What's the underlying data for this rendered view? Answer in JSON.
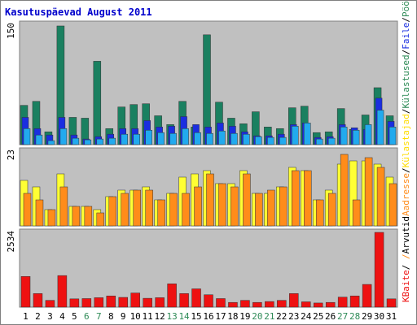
{
  "chart_data": {
    "title": "Kasutuspäevad August 2011",
    "type": "bar",
    "days": [
      "1",
      "2",
      "3",
      "4",
      "5",
      "6",
      "7",
      "8",
      "9",
      "10",
      "11",
      "12",
      "13",
      "14",
      "15",
      "16",
      "17",
      "18",
      "19",
      "20",
      "21",
      "22",
      "23",
      "24",
      "25",
      "26",
      "27",
      "28",
      "29",
      "30",
      "31"
    ],
    "weekend_days": [
      "6",
      "7",
      "13",
      "14",
      "20",
      "21",
      "27",
      "28"
    ],
    "colors": {
      "background": "#c0c0c0",
      "weekday_label": "#000000",
      "weekend_label": "#2e8b57",
      "visits": "#1a8060",
      "pages": "#1a2ee0",
      "hits": "#22aaee",
      "files": "#ffff33",
      "sites": "#ff8c1a",
      "kbytes": "#ee1111"
    },
    "panels": [
      {
        "max_label": "150",
        "ymax": 150,
        "series": [
          {
            "name": "Külastused",
            "values": [
              49,
              54,
              16,
              148,
              34,
              33,
              104,
              20,
              47,
              50,
              51,
              36,
              25,
              54,
              22,
              137,
              53,
              33,
              26,
              41,
              22,
              20,
              46,
              48,
              15,
              16,
              45,
              19,
              37,
              71,
              36
            ]
          },
          {
            "name": "Failid",
            "values": [
              34,
              20,
              12,
              34,
              12,
              7,
              10,
              13,
              20,
              20,
              30,
              22,
              23,
              35,
              25,
              22,
              27,
              23,
              16,
              11,
              11,
              13,
              25,
              27,
              9,
              10,
              25,
              21,
              19,
              58,
              29
            ]
          },
          {
            "name": "Pöördumisi",
            "values": [
              20,
              12,
              5,
              20,
              8,
              6,
              7,
              8,
              13,
              13,
              18,
              15,
              14,
              20,
              15,
              14,
              17,
              14,
              13,
              10,
              9,
              9,
              23,
              27,
              7,
              8,
              22,
              18,
              25,
              43,
              22
            ]
          }
        ]
      },
      {
        "max_label": "23",
        "ymax": 23,
        "series": [
          {
            "name": "Külastajad",
            "values": [
              14,
              12,
              5,
              16,
              6,
              6,
              5,
              9,
              11,
              11,
              12,
              8,
              10,
              15,
              16,
              17,
              13,
              13,
              17,
              10,
              10,
              12,
              18,
              17,
              8,
              11,
              19,
              20,
              20,
              19,
              15
            ]
          },
          {
            "name": "Aadresse",
            "values": [
              10,
              8,
              5,
              12,
              6,
              6,
              4,
              9,
              10,
              11,
              11,
              8,
              10,
              10,
              12,
              16,
              13,
              12,
              16,
              10,
              11,
              12,
              17,
              17,
              8,
              10,
              22,
              8,
              21,
              18,
              13
            ]
          }
        ]
      },
      {
        "max_label": "2534",
        "ymax": 2534,
        "series": [
          {
            "name": "KBaite",
            "values": [
              1040,
              460,
              230,
              1070,
              280,
              290,
              320,
              380,
              330,
              480,
              300,
              320,
              790,
              460,
              620,
              420,
              290,
              160,
              230,
              160,
              190,
              230,
              460,
              180,
              140,
              160,
              340,
              380,
              770,
              2534,
              280
            ]
          }
        ]
      }
    ],
    "legend": [
      "Pöördumisi",
      "/",
      "Faile",
      "/",
      "Külastused",
      "/",
      "Külastajad",
      "/",
      "Aadresse",
      "/",
      "Arvutid",
      "/",
      "KBaite"
    ]
  }
}
